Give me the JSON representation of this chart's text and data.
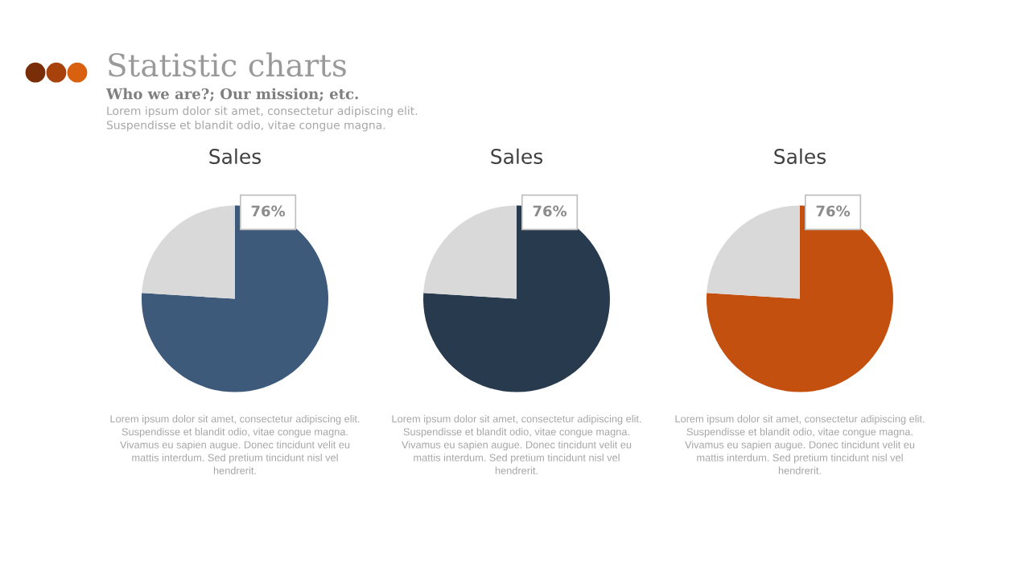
{
  "chart_data": [
    {
      "type": "other",
      "title": "Statistic charts",
      "subtitle": "Who we are?; Our mission; etc.",
      "annotations": [
        "Lorem ipsum dolor sit amet, consectetur adipiscing elit.\nSuspendisse et blandit odio, vitae congue magna."
      ]
    },
    {
      "type": "pie",
      "title": "Sales",
      "categories": [
        null,
        null
      ],
      "values": [
        76,
        24
      ],
      "colors": [
        "#3d5a7a",
        "#d9d9d9"
      ],
      "value_labels": [
        "76%",
        null
      ],
      "annotations": [
        "Lorem ipsum dolor sit amet, consectetur adipiscing elit.\nSuspendisse et blandit odio, vitae congue magna.\nVivamus eu sapien augue. Donec tincidunt velit eu\nmattis interdum. Sed pretium tincidunt nisl vel\nhendrerit."
      ]
    },
    {
      "type": "pie",
      "title": "Sales",
      "categories": [
        null,
        null
      ],
      "values": [
        76,
        24
      ],
      "colors": [
        "#283a4e",
        "#d9d9d9"
      ],
      "value_labels": [
        "76%",
        null
      ],
      "annotations": [
        "Lorem ipsum dolor sit amet, consectetur adipiscing elit.\nSuspendisse et blandit odio, vitae congue magna.\nVivamus eu sapien augue. Donec tincidunt velit eu\nmattis interdum. Sed pretium tincidunt nisl vel\nhendrerit."
      ]
    },
    {
      "type": "pie",
      "title": "Sales",
      "categories": [
        null,
        null
      ],
      "values": [
        76,
        24
      ],
      "colors": [
        "#c4500f",
        "#d9d9d9"
      ],
      "value_labels": [
        "76%",
        null
      ],
      "annotations": [
        "Lorem ipsum dolor sit amet, consectetur adipiscing elit.\nSuspendisse et blandit odio, vitae congue magna.\nVivamus eu sapien augue. Donec tincidunt velit eu\nmattis interdum. Sed pretium tincidunt nisl vel\nhendrerit."
      ]
    }
  ]
}
